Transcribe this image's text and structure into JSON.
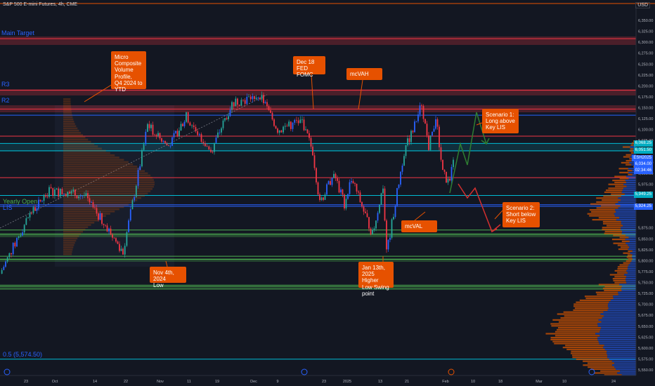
{
  "header": {
    "title": "S&P 500 E-mini Futures, 4h, CME",
    "currency": "USD"
  },
  "levels": {
    "main_target": {
      "label": "Main Target",
      "color": "#2962ff"
    },
    "r3": {
      "label": "R3",
      "color": "#2962ff"
    },
    "r2": {
      "label": "R2",
      "color": "#2962ff"
    },
    "yearly_open": {
      "label": "Yearly Open",
      "color": "#4caf50"
    },
    "lis": {
      "label": "LIS",
      "color": "#2962ff"
    },
    "fib": {
      "label": "0.5 (5,574.50)",
      "color": "#2962ff"
    }
  },
  "callouts": {
    "micro": "Micro\nComposite\nVolume\nProfile,\nQ4 2024 to\nYTD",
    "dec18": "Dec 18\nFED FOMC",
    "mcvah": "mcVAH",
    "scen1": "Scenario 1:\nLong above\nKey LIS",
    "mcval": "mcVAL",
    "scen2": "Scenario 2:\nShort below\nKey LIS",
    "nov4": "Nov 4th, 2024\nLow",
    "jan13": "Jan 13th,\n2025 Higher\nLow Swing\npoint"
  },
  "price_tags": {
    "t6068": "6,068.25",
    "t6051": "6,051.50",
    "sym": "ESH2025",
    "t6034": "6,034.00",
    "cd": "02:34:46",
    "t5949": "5,949.25",
    "t5924": "5,924.25"
  },
  "colors": {
    "bg": "#131722",
    "up": "#26a69a",
    "upBlue": "#2962ff",
    "down": "#f23645",
    "cyan": "#00bcd4",
    "green": "#4caf50",
    "orange": "#e65100"
  },
  "chart_data": {
    "type": "candlestick",
    "title": "S&P 500 E-mini Futures, 4h, CME",
    "ylim": [
      5540,
      6380
    ],
    "y_ticks": [
      6350,
      6325,
      6300,
      6275,
      6250,
      6225,
      6200,
      6175,
      6150,
      6125,
      6100,
      6075,
      6025,
      6000,
      5975,
      5875,
      5850,
      5825,
      5800,
      5775,
      5750,
      5725,
      5700,
      5675,
      5650,
      5625,
      5600,
      5575,
      5550
    ],
    "y_tick_labels": [
      "6,350.00",
      "6,325.00",
      "6,300.00",
      "6,275.00",
      "6,250.00",
      "6,225.00",
      "6,200.00",
      "6,175.00",
      "6,150.00",
      "6,125.00",
      "6,100.00",
      "6,075.00",
      "6,025.00",
      "6,000.00",
      "5,975.00",
      "5,875.00",
      "5,850.00",
      "5,825.00",
      "5,800.00",
      "5,775.00",
      "5,750.00",
      "5,725.00",
      "5,700.00",
      "5,675.00",
      "5,650.00",
      "5,625.00",
      "5,600.00",
      "5,575.00",
      "5,550.00"
    ],
    "x_labels": [
      "23",
      "Oct",
      "14",
      "22",
      "Nov",
      "11",
      "19",
      "Dec",
      "9",
      "23",
      "2025",
      "13",
      "21",
      "Feb",
      "10",
      "18",
      "Mar",
      "10",
      "24"
    ],
    "swing_path": [
      5770,
      5900,
      5960,
      5950,
      5880,
      5820,
      6110,
      6060,
      6130,
      6050,
      6160,
      6180,
      6100,
      6120,
      6050,
      5930,
      6000,
      5930,
      5990,
      5860,
      5970,
      5815,
      6050,
      6110,
      6160,
      6060,
      6130,
      6000,
      5975,
      6040
    ],
    "horizontal_levels": [
      6308,
      6190,
      6147,
      6133,
      6085,
      6068.25,
      6051.5,
      5990,
      5949.25,
      5928,
      5924.25,
      5870,
      5860,
      5810,
      5803,
      5742,
      5735,
      5574.5
    ],
    "annotations": [
      "Main Target",
      "R3",
      "R2",
      "Yearly Open",
      "LIS",
      "0.5 (5,574.50)",
      "mcVAH",
      "mcVAL",
      "Dec 18 FED FOMC",
      "Nov 4th, 2024 Low",
      "Jan 13th, 2025 Higher Low Swing point",
      "Scenario 1: Long above Key LIS",
      "Scenario 2: Short below Key LIS"
    ],
    "price_tags": [
      6068.25,
      6051.5,
      6034.0,
      5949.25,
      5924.25
    ],
    "last_price": 6034.0
  }
}
